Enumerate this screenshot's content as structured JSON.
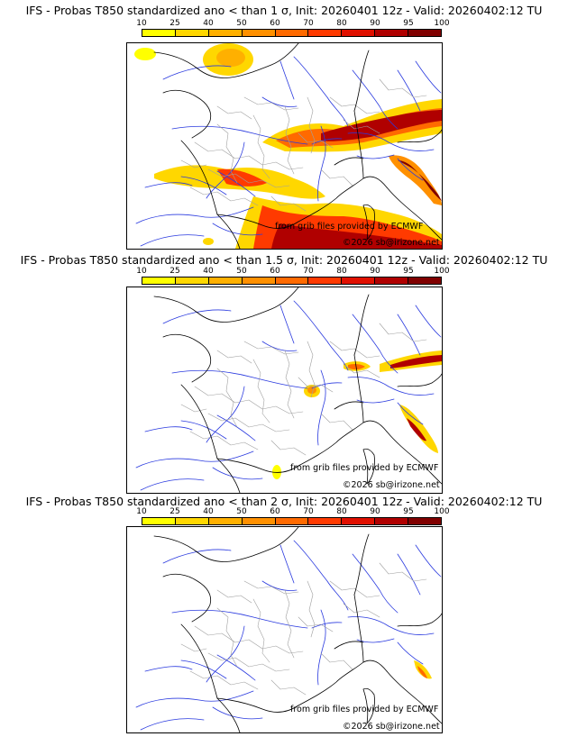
{
  "panels": [
    {
      "title": "IFS - Probas T850  standardized ano < than 1 σ, Init: 20260401 12z - Valid: 20260402:12 TU",
      "credit": "from grib files provided by ECMWF",
      "copyright": "©2026 sb@irizone.net"
    },
    {
      "title": "IFS - Probas T850  standardized ano < than 1.5 σ, Init: 20260401 12z - Valid: 20260402:12 TU",
      "credit": "from grib files provided by ECMWF",
      "copyright": "©2026 sb@irizone.net"
    },
    {
      "title": "IFS - Probas T850  standardized ano < than 2 σ, Init: 20260401 12z - Valid: 20260402:12 TU",
      "credit": "from grib files provided by ECMWF",
      "copyright": "©2026 sb@irizone.net"
    }
  ],
  "legend": {
    "ticks": [
      "10",
      "25",
      "40",
      "50",
      "60",
      "70",
      "80",
      "90",
      "95",
      "100"
    ],
    "colors": [
      "#ffff00",
      "#ffd700",
      "#ffb000",
      "#ff9000",
      "#ff6a00",
      "#ff3a00",
      "#e01000",
      "#b00000",
      "#800000"
    ]
  },
  "colors": {
    "coast": "#000000",
    "borders": "#a0a0a0",
    "rivers": "#2a3adf"
  }
}
